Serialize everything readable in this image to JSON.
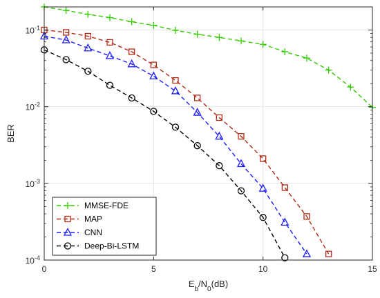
{
  "chart_data": {
    "type": "line",
    "title": "",
    "xlabel": "E_b/N_0(dB)",
    "ylabel": "BER",
    "xlim": [
      0,
      15
    ],
    "ylim": [
      0.0001,
      0.2
    ],
    "yscale": "log",
    "grid": true,
    "legend_position": "bottom-left",
    "x_ticks": [
      0,
      5,
      10,
      15
    ],
    "x_tick_labels": [
      "0",
      "5",
      "10",
      "15"
    ],
    "y_ticks": [
      0.0001,
      0.001,
      0.01,
      0.1
    ],
    "y_tick_labels": [
      {
        "base": "10",
        "exp": "-4"
      },
      {
        "base": "10",
        "exp": "-3"
      },
      {
        "base": "10",
        "exp": "-2"
      },
      {
        "base": "10",
        "exp": "-1"
      }
    ],
    "series": [
      {
        "name": "MMSE-FDE",
        "color": "#33cc00",
        "marker": "plus",
        "x": [
          0,
          1,
          2,
          3,
          4,
          5,
          6,
          7,
          8,
          9,
          10,
          11,
          12,
          13,
          14,
          15
        ],
        "y": [
          0.2,
          0.18,
          0.16,
          0.145,
          0.128,
          0.115,
          0.099,
          0.088,
          0.08,
          0.072,
          0.065,
          0.052,
          0.043,
          0.03,
          0.018,
          0.0098
        ]
      },
      {
        "name": "MAP",
        "color": "#b02a14",
        "marker": "square",
        "x": [
          0,
          1,
          2,
          3,
          4,
          5,
          6,
          7,
          8,
          9,
          10,
          11,
          12,
          13
        ],
        "y": [
          0.1,
          0.093,
          0.083,
          0.069,
          0.052,
          0.035,
          0.022,
          0.013,
          0.0072,
          0.0041,
          0.0021,
          0.00088,
          0.00037,
          0.00012
        ]
      },
      {
        "name": "CNN",
        "color": "#1a1aff",
        "marker": "triangle",
        "x": [
          0,
          1,
          2,
          3,
          4,
          5,
          6,
          7,
          8,
          9,
          10,
          11,
          12
        ],
        "y": [
          0.083,
          0.074,
          0.058,
          0.046,
          0.036,
          0.025,
          0.016,
          0.0084,
          0.0041,
          0.0018,
          0.00086,
          0.00031,
          0.00012
        ]
      },
      {
        "name": "Deep-Bi-LSTM",
        "color": "#000000",
        "marker": "circle",
        "x": [
          0,
          1,
          2,
          3,
          4,
          5,
          6,
          7,
          8,
          9,
          10,
          11
        ],
        "y": [
          0.055,
          0.041,
          0.029,
          0.019,
          0.013,
          0.0087,
          0.0054,
          0.0031,
          0.0017,
          0.0008,
          0.00036,
          0.000107
        ]
      }
    ]
  }
}
